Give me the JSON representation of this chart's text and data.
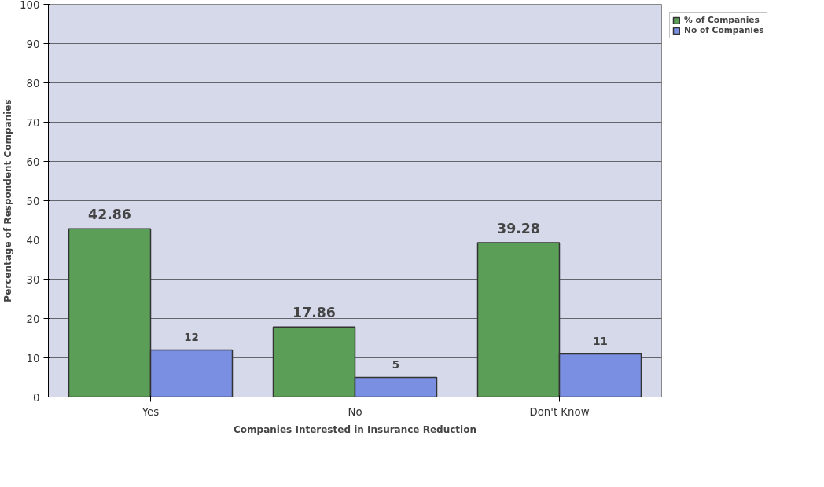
{
  "chart_data": {
    "type": "bar",
    "xlabel": "Companies Interested in Insurance Reduction",
    "ylabel": "Percentage of Respondent Companies",
    "categories": [
      "Yes",
      "No",
      "Don't Know"
    ],
    "series": [
      {
        "name": "% of Companies",
        "color": "#5b9e58",
        "values": [
          42.86,
          17.86,
          39.28
        ]
      },
      {
        "name": "No of Companies",
        "color": "#7b8fe2",
        "values": [
          12,
          5,
          11
        ]
      }
    ],
    "ylim": [
      0,
      100
    ],
    "yticks": [
      0,
      10,
      20,
      30,
      40,
      50,
      60,
      70,
      80,
      90,
      100
    ],
    "grid": "y",
    "legend": "top right",
    "data_labels": true
  }
}
